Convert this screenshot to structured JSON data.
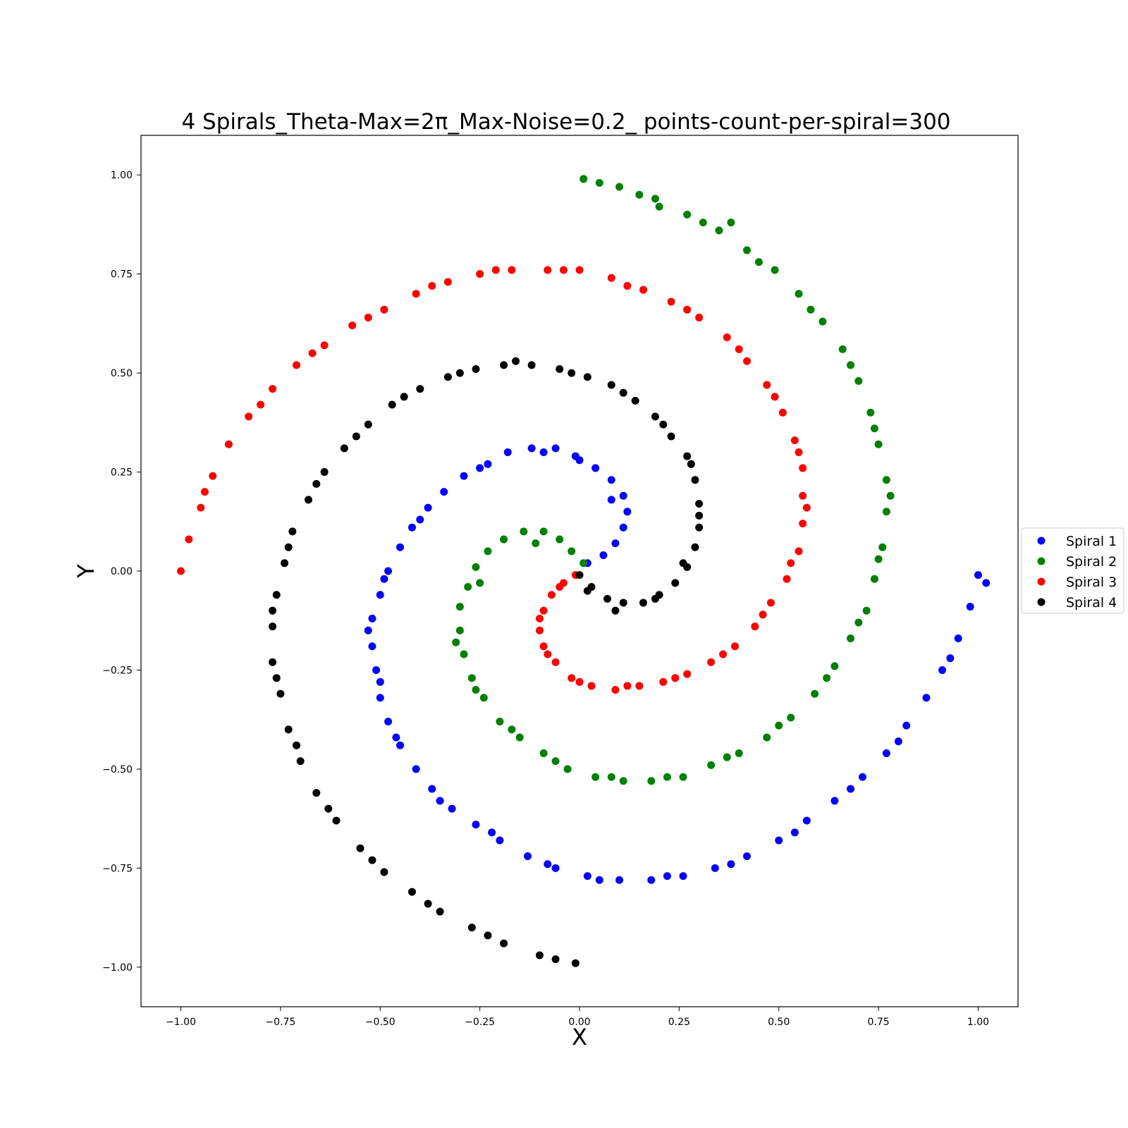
{
  "chart_data": {
    "type": "scatter",
    "title": "4 Spirals_Theta-Max=2π_Max-Noise=0.2_ points-count-per-spiral=300",
    "xlabel": "X",
    "ylabel": "Y",
    "xlim": [
      -1.1,
      1.1
    ],
    "ylim": [
      -1.1,
      1.1
    ],
    "grid": false,
    "legend_position": "center-right-outside",
    "x_ticks": [
      "−1.00",
      "−0.75",
      "−0.50",
      "−0.25",
      "0.00",
      "0.25",
      "0.50",
      "0.75",
      "1.00"
    ],
    "x_tick_values": [
      -1.0,
      -0.75,
      -0.5,
      -0.25,
      0.0,
      0.25,
      0.5,
      0.75,
      1.0
    ],
    "y_ticks": [
      "−1.00",
      "−0.75",
      "−0.50",
      "−0.25",
      "0.00",
      "0.25",
      "0.50",
      "0.75",
      "1.00"
    ],
    "y_tick_values": [
      -1.0,
      -0.75,
      -0.5,
      -0.25,
      0.0,
      0.25,
      0.5,
      0.75,
      1.0
    ],
    "series": [
      {
        "name": "Spiral 1",
        "color": "#0000ff",
        "points": [
          [
            0.02,
            0.02
          ],
          [
            0.06,
            0.04
          ],
          [
            0.09,
            0.07
          ],
          [
            0.11,
            0.11
          ],
          [
            0.12,
            0.15
          ],
          [
            0.11,
            0.19
          ],
          [
            0.08,
            0.23
          ],
          [
            0.04,
            0.26
          ],
          [
            -0.01,
            0.29
          ],
          [
            -0.06,
            0.31
          ],
          [
            -0.12,
            0.31
          ],
          [
            -0.18,
            0.3
          ],
          [
            -0.23,
            0.27
          ],
          [
            -0.29,
            0.24
          ],
          [
            -0.34,
            0.2
          ],
          [
            -0.38,
            0.16
          ],
          [
            -0.42,
            0.11
          ],
          [
            -0.45,
            0.06
          ],
          [
            -0.48,
            0.0
          ],
          [
            -0.5,
            -0.06
          ],
          [
            -0.52,
            -0.12
          ],
          [
            -0.52,
            -0.19
          ],
          [
            -0.51,
            -0.25
          ],
          [
            -0.5,
            -0.32
          ],
          [
            -0.48,
            -0.38
          ],
          [
            -0.45,
            -0.44
          ],
          [
            -0.41,
            -0.5
          ],
          [
            -0.37,
            -0.55
          ],
          [
            -0.32,
            -0.6
          ],
          [
            -0.26,
            -0.64
          ],
          [
            -0.2,
            -0.68
          ],
          [
            -0.13,
            -0.72
          ],
          [
            -0.06,
            -0.75
          ],
          [
            0.02,
            -0.77
          ],
          [
            0.1,
            -0.78
          ],
          [
            0.18,
            -0.78
          ],
          [
            0.26,
            -0.77
          ],
          [
            0.34,
            -0.75
          ],
          [
            0.42,
            -0.72
          ],
          [
            0.5,
            -0.68
          ],
          [
            0.57,
            -0.63
          ],
          [
            0.64,
            -0.58
          ],
          [
            0.71,
            -0.52
          ],
          [
            0.77,
            -0.46
          ],
          [
            0.82,
            -0.39
          ],
          [
            0.87,
            -0.32
          ],
          [
            0.91,
            -0.25
          ],
          [
            0.95,
            -0.17
          ],
          [
            0.98,
            -0.09
          ],
          [
            1.0,
            -0.01
          ],
          [
            0.08,
            0.18
          ],
          [
            0.0,
            0.28
          ],
          [
            -0.09,
            0.3
          ],
          [
            -0.25,
            0.26
          ],
          [
            -0.4,
            0.13
          ],
          [
            -0.49,
            -0.02
          ],
          [
            -0.53,
            -0.15
          ],
          [
            -0.5,
            -0.28
          ],
          [
            -0.46,
            -0.42
          ],
          [
            -0.35,
            -0.58
          ],
          [
            -0.22,
            -0.66
          ],
          [
            -0.08,
            -0.74
          ],
          [
            0.05,
            -0.78
          ],
          [
            0.22,
            -0.77
          ],
          [
            0.38,
            -0.74
          ],
          [
            0.54,
            -0.66
          ],
          [
            0.68,
            -0.55
          ],
          [
            0.8,
            -0.43
          ],
          [
            0.93,
            -0.22
          ],
          [
            1.02,
            -0.03
          ]
        ]
      },
      {
        "name": "Spiral 2",
        "color": "#008000",
        "points": [
          [
            0.01,
            0.02
          ],
          [
            -0.02,
            0.05
          ],
          [
            -0.05,
            0.08
          ],
          [
            -0.09,
            0.1
          ],
          [
            -0.14,
            0.1
          ],
          [
            -0.19,
            0.08
          ],
          [
            -0.23,
            0.05
          ],
          [
            -0.26,
            0.01
          ],
          [
            -0.28,
            -0.04
          ],
          [
            -0.3,
            -0.09
          ],
          [
            -0.3,
            -0.15
          ],
          [
            -0.29,
            -0.21
          ],
          [
            -0.27,
            -0.27
          ],
          [
            -0.24,
            -0.32
          ],
          [
            -0.2,
            -0.38
          ],
          [
            -0.15,
            -0.42
          ],
          [
            -0.09,
            -0.46
          ],
          [
            -0.03,
            -0.5
          ],
          [
            0.04,
            -0.52
          ],
          [
            0.11,
            -0.53
          ],
          [
            0.18,
            -0.53
          ],
          [
            0.26,
            -0.52
          ],
          [
            0.33,
            -0.49
          ],
          [
            0.4,
            -0.46
          ],
          [
            0.47,
            -0.42
          ],
          [
            0.53,
            -0.37
          ],
          [
            0.59,
            -0.31
          ],
          [
            0.64,
            -0.24
          ],
          [
            0.68,
            -0.17
          ],
          [
            0.72,
            -0.1
          ],
          [
            0.74,
            -0.02
          ],
          [
            0.76,
            0.06
          ],
          [
            0.77,
            0.15
          ],
          [
            0.77,
            0.23
          ],
          [
            0.75,
            0.32
          ],
          [
            0.73,
            0.4
          ],
          [
            0.7,
            0.48
          ],
          [
            0.66,
            0.56
          ],
          [
            0.61,
            0.63
          ],
          [
            0.55,
            0.7
          ],
          [
            0.49,
            0.76
          ],
          [
            0.42,
            0.81
          ],
          [
            0.35,
            0.86
          ],
          [
            0.27,
            0.9
          ],
          [
            0.19,
            0.94
          ],
          [
            0.1,
            0.97
          ],
          [
            0.01,
            0.99
          ],
          [
            -0.11,
            0.07
          ],
          [
            -0.25,
            -0.03
          ],
          [
            -0.31,
            -0.18
          ],
          [
            -0.26,
            -0.3
          ],
          [
            -0.17,
            -0.4
          ],
          [
            -0.06,
            -0.48
          ],
          [
            0.08,
            -0.52
          ],
          [
            0.22,
            -0.52
          ],
          [
            0.37,
            -0.47
          ],
          [
            0.5,
            -0.39
          ],
          [
            0.62,
            -0.27
          ],
          [
            0.7,
            -0.13
          ],
          [
            0.75,
            0.03
          ],
          [
            0.78,
            0.19
          ],
          [
            0.74,
            0.36
          ],
          [
            0.68,
            0.52
          ],
          [
            0.58,
            0.66
          ],
          [
            0.45,
            0.78
          ],
          [
            0.31,
            0.88
          ],
          [
            0.15,
            0.95
          ],
          [
            0.05,
            0.98
          ],
          [
            0.2,
            0.92
          ],
          [
            0.38,
            0.88
          ]
        ]
      },
      {
        "name": "Spiral 3",
        "color": "#ff0000",
        "points": [
          [
            -0.01,
            -0.01
          ],
          [
            -0.04,
            -0.03
          ],
          [
            -0.07,
            -0.06
          ],
          [
            -0.09,
            -0.1
          ],
          [
            -0.1,
            -0.15
          ],
          [
            -0.09,
            -0.19
          ],
          [
            -0.06,
            -0.23
          ],
          [
            -0.02,
            -0.27
          ],
          [
            0.03,
            -0.29
          ],
          [
            0.09,
            -0.3
          ],
          [
            0.15,
            -0.29
          ],
          [
            0.21,
            -0.28
          ],
          [
            0.27,
            -0.26
          ],
          [
            0.33,
            -0.23
          ],
          [
            0.39,
            -0.19
          ],
          [
            0.44,
            -0.14
          ],
          [
            0.48,
            -0.08
          ],
          [
            0.52,
            -0.02
          ],
          [
            0.55,
            0.05
          ],
          [
            0.56,
            0.12
          ],
          [
            0.56,
            0.19
          ],
          [
            0.56,
            0.26
          ],
          [
            0.54,
            0.33
          ],
          [
            0.51,
            0.4
          ],
          [
            0.47,
            0.47
          ],
          [
            0.42,
            0.53
          ],
          [
            0.37,
            0.59
          ],
          [
            0.3,
            0.64
          ],
          [
            0.23,
            0.68
          ],
          [
            0.16,
            0.71
          ],
          [
            0.08,
            0.74
          ],
          [
            0.0,
            0.76
          ],
          [
            -0.08,
            0.76
          ],
          [
            -0.17,
            0.76
          ],
          [
            -0.25,
            0.75
          ],
          [
            -0.33,
            0.73
          ],
          [
            -0.41,
            0.7
          ],
          [
            -0.49,
            0.66
          ],
          [
            -0.57,
            0.62
          ],
          [
            -0.64,
            0.57
          ],
          [
            -0.71,
            0.52
          ],
          [
            -0.77,
            0.46
          ],
          [
            -0.83,
            0.39
          ],
          [
            -0.88,
            0.32
          ],
          [
            -0.92,
            0.24
          ],
          [
            -0.95,
            0.16
          ],
          [
            -0.98,
            0.08
          ],
          [
            -1.0,
            0.0
          ],
          [
            -0.05,
            -0.04
          ],
          [
            -0.1,
            -0.12
          ],
          [
            -0.08,
            -0.21
          ],
          [
            0.0,
            -0.28
          ],
          [
            0.12,
            -0.29
          ],
          [
            0.24,
            -0.27
          ],
          [
            0.36,
            -0.21
          ],
          [
            0.46,
            -0.11
          ],
          [
            0.53,
            0.02
          ],
          [
            0.57,
            0.16
          ],
          [
            0.55,
            0.3
          ],
          [
            0.49,
            0.44
          ],
          [
            0.4,
            0.56
          ],
          [
            0.27,
            0.66
          ],
          [
            0.12,
            0.72
          ],
          [
            -0.04,
            0.76
          ],
          [
            -0.21,
            0.76
          ],
          [
            -0.37,
            0.72
          ],
          [
            -0.53,
            0.64
          ],
          [
            -0.67,
            0.55
          ],
          [
            -0.8,
            0.42
          ],
          [
            -0.94,
            0.2
          ]
        ]
      },
      {
        "name": "Spiral 4",
        "color": "#000000",
        "points": [
          [
            0.0,
            -0.01
          ],
          [
            0.03,
            -0.04
          ],
          [
            0.07,
            -0.07
          ],
          [
            0.11,
            -0.08
          ],
          [
            0.16,
            -0.08
          ],
          [
            0.2,
            -0.06
          ],
          [
            0.24,
            -0.03
          ],
          [
            0.27,
            0.01
          ],
          [
            0.29,
            0.06
          ],
          [
            0.3,
            0.11
          ],
          [
            0.3,
            0.17
          ],
          [
            0.29,
            0.23
          ],
          [
            0.27,
            0.29
          ],
          [
            0.23,
            0.34
          ],
          [
            0.19,
            0.39
          ],
          [
            0.14,
            0.43
          ],
          [
            0.08,
            0.47
          ],
          [
            0.02,
            0.49
          ],
          [
            -0.05,
            0.51
          ],
          [
            -0.12,
            0.52
          ],
          [
            -0.19,
            0.52
          ],
          [
            -0.26,
            0.51
          ],
          [
            -0.33,
            0.49
          ],
          [
            -0.4,
            0.46
          ],
          [
            -0.47,
            0.42
          ],
          [
            -0.53,
            0.37
          ],
          [
            -0.59,
            0.31
          ],
          [
            -0.64,
            0.25
          ],
          [
            -0.68,
            0.18
          ],
          [
            -0.72,
            0.1
          ],
          [
            -0.74,
            0.02
          ],
          [
            -0.76,
            -0.06
          ],
          [
            -0.77,
            -0.14
          ],
          [
            -0.77,
            -0.23
          ],
          [
            -0.75,
            -0.31
          ],
          [
            -0.73,
            -0.4
          ],
          [
            -0.7,
            -0.48
          ],
          [
            -0.66,
            -0.56
          ],
          [
            -0.61,
            -0.63
          ],
          [
            -0.55,
            -0.7
          ],
          [
            -0.49,
            -0.76
          ],
          [
            -0.42,
            -0.81
          ],
          [
            -0.35,
            -0.86
          ],
          [
            -0.27,
            -0.9
          ],
          [
            -0.19,
            -0.94
          ],
          [
            -0.1,
            -0.97
          ],
          [
            -0.01,
            -0.99
          ],
          [
            0.02,
            -0.05
          ],
          [
            0.09,
            -0.1
          ],
          [
            0.19,
            -0.07
          ],
          [
            0.26,
            0.02
          ],
          [
            0.3,
            0.14
          ],
          [
            0.28,
            0.27
          ],
          [
            0.21,
            0.37
          ],
          [
            0.11,
            0.45
          ],
          [
            -0.02,
            0.5
          ],
          [
            -0.16,
            0.53
          ],
          [
            -0.3,
            0.5
          ],
          [
            -0.44,
            0.44
          ],
          [
            -0.56,
            0.34
          ],
          [
            -0.66,
            0.22
          ],
          [
            -0.73,
            0.06
          ],
          [
            -0.77,
            -0.1
          ],
          [
            -0.76,
            -0.27
          ],
          [
            -0.71,
            -0.44
          ],
          [
            -0.63,
            -0.6
          ],
          [
            -0.52,
            -0.73
          ],
          [
            -0.38,
            -0.84
          ],
          [
            -0.23,
            -0.92
          ],
          [
            -0.06,
            -0.98
          ]
        ]
      }
    ]
  }
}
